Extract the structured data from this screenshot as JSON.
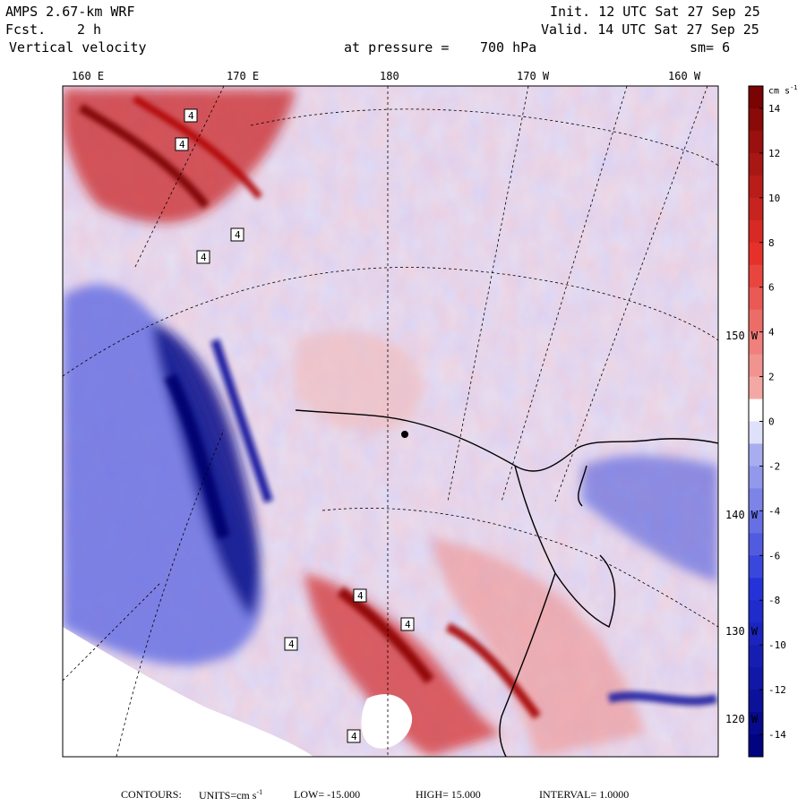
{
  "header": {
    "model": "AMPS 2.67-km WRF",
    "fcst_label": "Fcst.",
    "fcst_value": "2 h",
    "field": "Vertical velocity",
    "init": "Init. 12 UTC Sat 27 Sep 25",
    "valid": "Valid. 14 UTC Sat 27 Sep 25",
    "pressure_label": "at pressure =",
    "pressure_value": "700 hPa",
    "smooth": "sm= 6"
  },
  "longitude_labels": [
    "160 E",
    "170 E",
    "180",
    "170 W",
    "160 W"
  ],
  "latitude_labels": [
    "150 W",
    "140 W",
    "130 W",
    "120 W"
  ],
  "colorbar": {
    "unit_prefix": "cm s",
    "unit_exponent": "-1",
    "tick_labels": [
      "14",
      "12",
      "10",
      "8",
      "6",
      "4",
      "2",
      "0",
      "-2",
      "-4",
      "-6",
      "-8",
      "-10",
      "-12",
      "-14"
    ],
    "levels": [
      -15,
      15
    ],
    "colors": {
      "neg_dark": "#00007a",
      "neg_mid": "#2432d8",
      "neg_light": "#c9ccf6",
      "zero": "#ffffff",
      "pos_light": "#f6c6c2",
      "pos_mid": "#e6312a",
      "pos_dark": "#720000"
    }
  },
  "footer": {
    "contours_label": "CONTOURS:",
    "units_label": "UNITS=cm s",
    "units_exponent": "-1",
    "low_label": "LOW=",
    "low_value": "-15.000",
    "high_label": "HIGH=",
    "high_value": "15.000",
    "interval_label": "INTERVAL=",
    "interval_value": "1.0000"
  },
  "map_annotations": [
    "4",
    "4",
    "4",
    "4",
    "4",
    "4",
    "4",
    "4"
  ]
}
